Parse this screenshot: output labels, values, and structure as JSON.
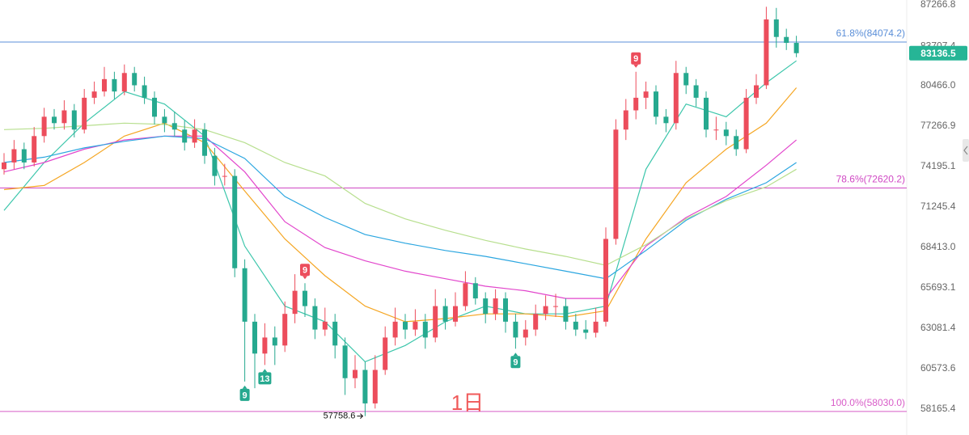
{
  "chart_data": {
    "type": "candlestick",
    "log_scale": true,
    "ylim": [
      56675,
      87693
    ],
    "yticks": [
      87266.8,
      83707.4,
      {
        "value": 80466,
        "label": "80466.0"
      },
      77266.9,
      74195.1,
      71245.4,
      {
        "value": 68413,
        "label": "68413.0"
      },
      65693.1,
      63081.4,
      60573.6,
      58165.4
    ],
    "up_color": "#ec4d5c",
    "down_color": "#26a98f",
    "x": [
      0,
      1,
      2,
      3,
      4,
      5,
      6,
      7,
      8,
      9,
      10,
      11,
      12,
      13,
      14,
      15,
      16,
      17,
      18,
      19,
      20,
      21,
      22,
      23,
      24,
      25,
      26,
      27,
      28,
      29,
      30,
      31,
      32,
      33,
      34,
      35,
      36,
      37,
      38,
      39,
      40,
      41,
      42,
      43,
      44,
      45,
      46,
      47,
      48,
      49,
      50,
      51,
      52,
      53,
      54,
      55,
      56,
      57,
      58,
      59,
      60,
      61,
      62,
      63,
      64,
      65,
      66,
      67,
      68,
      69,
      70,
      71,
      72,
      73,
      74,
      75,
      76,
      77,
      78,
      79
    ],
    "open": [
      74000,
      74500,
      75500,
      74500,
      76500,
      78000,
      77500,
      78500,
      77000,
      79500,
      80000,
      81000,
      80000,
      81500,
      80500,
      79500,
      78000,
      77500,
      77000,
      76000,
      77000,
      75000,
      73500,
      73500,
      67000,
      63500,
      61500,
      62500,
      62000,
      64000,
      65500,
      64500,
      63000,
      63500,
      62000,
      60000,
      60500,
      58500,
      60500,
      62500,
      63500,
      63000,
      63500,
      62500,
      64500,
      63500,
      64500,
      66000,
      65000,
      64000,
      65000,
      63500,
      62500,
      63000,
      64000,
      64500,
      64500,
      63500,
      63000,
      62800,
      63500,
      69000,
      77000,
      78500,
      79500,
      80000,
      78000,
      77500,
      81500,
      80500,
      79500,
      77000,
      77000,
      76500,
      75500,
      79500,
      80500,
      86000,
      84500,
      84000
    ],
    "high": [
      75200,
      76200,
      76000,
      77200,
      78700,
      78600,
      79300,
      79000,
      80200,
      80800,
      82000,
      81600,
      82200,
      82000,
      81200,
      80000,
      78600,
      78400,
      77700,
      77800,
      77500,
      75600,
      74400,
      74000,
      67600,
      64000,
      63400,
      63200,
      64800,
      66600,
      66000,
      65000,
      64400,
      64000,
      62500,
      61400,
      61000,
      61400,
      63200,
      64400,
      64000,
      64300,
      64000,
      65600,
      65000,
      65400,
      66800,
      66400,
      65400,
      65600,
      65400,
      64000,
      63600,
      64600,
      65200,
      65300,
      65000,
      64000,
      63600,
      64400,
      69800,
      77800,
      79400,
      81600,
      80800,
      80500,
      78600,
      82500,
      82000,
      81000,
      80000,
      78000,
      77600,
      77000,
      80200,
      81400,
      87100,
      87000,
      85200,
      84600
    ],
    "low": [
      73600,
      74000,
      74000,
      74200,
      76000,
      77000,
      77000,
      76400,
      76700,
      79000,
      79600,
      79400,
      79700,
      80000,
      79000,
      77400,
      76800,
      76500,
      75400,
      75600,
      74400,
      72800,
      72800,
      66400,
      59800,
      59400,
      60800,
      60800,
      61600,
      63400,
      63800,
      62400,
      62600,
      61200,
      59000,
      59400,
      57758.6,
      58200,
      60200,
      62000,
      62400,
      62600,
      61800,
      62200,
      63000,
      63200,
      64200,
      64600,
      63400,
      63600,
      62800,
      61800,
      62000,
      62600,
      63600,
      63800,
      63000,
      62600,
      62400,
      62500,
      63200,
      68600,
      76200,
      77800,
      78600,
      77400,
      76800,
      77000,
      79800,
      78800,
      76400,
      76200,
      75800,
      75000,
      75200,
      79000,
      80200,
      83600,
      83400,
      82800
    ],
    "close": [
      74500,
      75500,
      74500,
      76500,
      78000,
      77500,
      78500,
      77000,
      79500,
      80000,
      81000,
      80000,
      81500,
      80500,
      79500,
      78000,
      77500,
      77000,
      76000,
      77000,
      75000,
      73500,
      73500,
      67000,
      63500,
      61500,
      62500,
      62000,
      64000,
      65500,
      64500,
      63000,
      63500,
      62000,
      60000,
      60500,
      58500,
      60500,
      62500,
      63500,
      63000,
      63500,
      62500,
      64500,
      63500,
      64500,
      66000,
      65000,
      64000,
      65000,
      63500,
      62500,
      63000,
      64000,
      64500,
      64500,
      63500,
      63000,
      62800,
      63500,
      69000,
      77000,
      78500,
      79500,
      80000,
      78000,
      77500,
      81500,
      80500,
      79500,
      77000,
      77000,
      76500,
      75500,
      79500,
      80500,
      86000,
      84500,
      84000,
      83136.5
    ],
    "lines": [
      {
        "color": "#3cc6ab",
        "x": [
          0,
          4,
          8,
          12,
          16,
          20,
          24,
          28,
          32,
          36,
          40,
          44,
          48,
          52,
          56,
          60,
          64,
          68,
          72,
          76,
          79
        ],
        "values": [
          71000,
          74500,
          77500,
          80000,
          79000,
          76500,
          68500,
          64500,
          63500,
          61000,
          62000,
          63500,
          64500,
          64000,
          64000,
          64500,
          74000,
          79000,
          78000,
          80700,
          82500
        ]
      },
      {
        "color": "#f5a623",
        "x": [
          0,
          4,
          8,
          12,
          16,
          20,
          24,
          28,
          32,
          36,
          40,
          44,
          48,
          52,
          56,
          60,
          64,
          68,
          72,
          76,
          79
        ],
        "values": [
          72500,
          72800,
          74500,
          76500,
          77500,
          76000,
          72400,
          69000,
          66500,
          64500,
          63500,
          63700,
          64000,
          64000,
          63800,
          64200,
          69000,
          73000,
          75500,
          77500,
          80300
        ]
      },
      {
        "color": "#e246cc",
        "x": [
          0,
          4,
          8,
          12,
          16,
          20,
          24,
          28,
          32,
          36,
          40,
          44,
          48,
          52,
          56,
          60,
          64,
          68,
          72,
          76,
          79
        ],
        "values": [
          73800,
          74500,
          75500,
          76200,
          76500,
          76500,
          73800,
          70200,
          68400,
          67500,
          66800,
          66300,
          65800,
          65500,
          65000,
          65000,
          68500,
          70500,
          72000,
          74300,
          76200
        ]
      },
      {
        "color": "#2ba6e0",
        "x": [
          0,
          4,
          8,
          12,
          16,
          20,
          24,
          28,
          32,
          36,
          40,
          44,
          48,
          52,
          56,
          60,
          64,
          68,
          72,
          76,
          79
        ],
        "values": [
          74500,
          74900,
          75600,
          76100,
          76500,
          76300,
          74800,
          72000,
          70500,
          69300,
          68700,
          68200,
          67800,
          67300,
          66800,
          66300,
          68200,
          70300,
          71800,
          73000,
          74500
        ]
      },
      {
        "color": "#b7df8e",
        "x": [
          0,
          4,
          8,
          12,
          16,
          20,
          24,
          28,
          32,
          36,
          40,
          44,
          48,
          52,
          56,
          60,
          64,
          68,
          72,
          76,
          79
        ],
        "values": [
          77000,
          77100,
          77300,
          77500,
          77400,
          77000,
          76000,
          74500,
          73500,
          71500,
          70400,
          69600,
          68900,
          68300,
          67800,
          67200,
          68600,
          70400,
          71700,
          72700,
          74000
        ]
      }
    ],
    "levels": [
      {
        "value": 84074.2,
        "label": "61.8%(84074.2)",
        "color": "#5b8fd8"
      },
      {
        "value": 72620.2,
        "label": "78.6%(72620.2)",
        "color": "#d048c4"
      },
      {
        "value": 58030.0,
        "label": "100.0%(58030.0)",
        "color": "#d85cc8"
      }
    ],
    "last_price": {
      "value": 83136.5,
      "color": "#26b596"
    },
    "low_marker": {
      "x": 36,
      "value": 57758.6
    },
    "markers": [
      {
        "x": 63,
        "label": "9",
        "position": "above",
        "color": "#ec4d5c"
      },
      {
        "x": 30,
        "label": "9",
        "position": "above",
        "color": "#ec4d5c"
      },
      {
        "x": 24,
        "label": "9",
        "position": "below",
        "color": "#26a98f"
      },
      {
        "x": 26,
        "label": "13",
        "position": "below",
        "color": "#26a98f"
      },
      {
        "x": 51,
        "label": "9",
        "position": "below",
        "color": "#26a98f"
      }
    ],
    "watermark": "1日"
  }
}
